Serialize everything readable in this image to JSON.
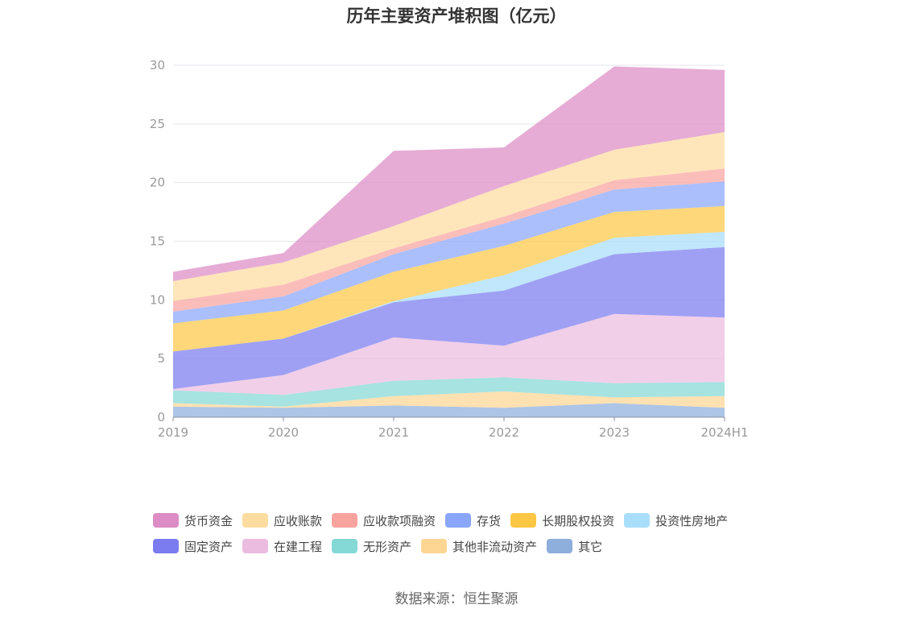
{
  "chart_data": {
    "type": "area",
    "stacked": true,
    "title": "历年主要资产堆积图（亿元）",
    "categories": [
      "2019",
      "2020",
      "2021",
      "2022",
      "2023",
      "2024H1"
    ],
    "ylim": [
      0,
      30
    ],
    "yticks": [
      0,
      5,
      10,
      15,
      20,
      25,
      30
    ],
    "grid": true,
    "legend_position": "bottom",
    "series": [
      {
        "name": "其它",
        "color": "#8eaedc",
        "values": [
          0.9,
          0.8,
          1.0,
          0.8,
          1.2,
          0.8
        ]
      },
      {
        "name": "其他非流动资产",
        "color": "#fdd693",
        "values": [
          0.3,
          0.1,
          0.8,
          1.4,
          0.5,
          1.0
        ]
      },
      {
        "name": "无形资产",
        "color": "#84d8d6",
        "values": [
          1.1,
          1.0,
          1.3,
          1.2,
          1.2,
          1.2
        ]
      },
      {
        "name": "在建工程",
        "color": "#ebbcdf",
        "values": [
          0.1,
          1.7,
          3.7,
          2.7,
          5.9,
          5.5
        ]
      },
      {
        "name": "固定资产",
        "color": "#7a7cf0",
        "values": [
          3.2,
          3.1,
          3.0,
          4.7,
          5.1,
          6.0
        ]
      },
      {
        "name": "投资性房地产",
        "color": "#a8defa",
        "values": [
          0.0,
          0.0,
          0.1,
          1.3,
          1.4,
          1.3
        ]
      },
      {
        "name": "长期股权投资",
        "color": "#fcc745",
        "values": [
          2.4,
          2.4,
          2.5,
          2.5,
          2.2,
          2.2
        ]
      },
      {
        "name": "存货",
        "color": "#8aa6fb",
        "values": [
          1.0,
          1.2,
          1.5,
          1.9,
          1.9,
          2.1
        ]
      },
      {
        "name": "应收款项融资",
        "color": "#f9a39f",
        "values": [
          0.9,
          1.0,
          0.5,
          0.6,
          0.8,
          1.1
        ]
      },
      {
        "name": "应收账款",
        "color": "#fddca0",
        "values": [
          1.7,
          1.9,
          1.9,
          2.6,
          2.6,
          3.1
        ]
      },
      {
        "name": "货币资金",
        "color": "#dd8cc5",
        "values": [
          0.8,
          0.8,
          6.4,
          3.3,
          7.1,
          5.3
        ]
      }
    ],
    "legend_order": [
      "货币资金",
      "应收账款",
      "应收款项融资",
      "存货",
      "长期股权投资",
      "投资性房地产",
      "固定资产",
      "在建工程",
      "无形资产",
      "其他非流动资产",
      "其它"
    ],
    "source": "数据来源：恒生聚源"
  }
}
